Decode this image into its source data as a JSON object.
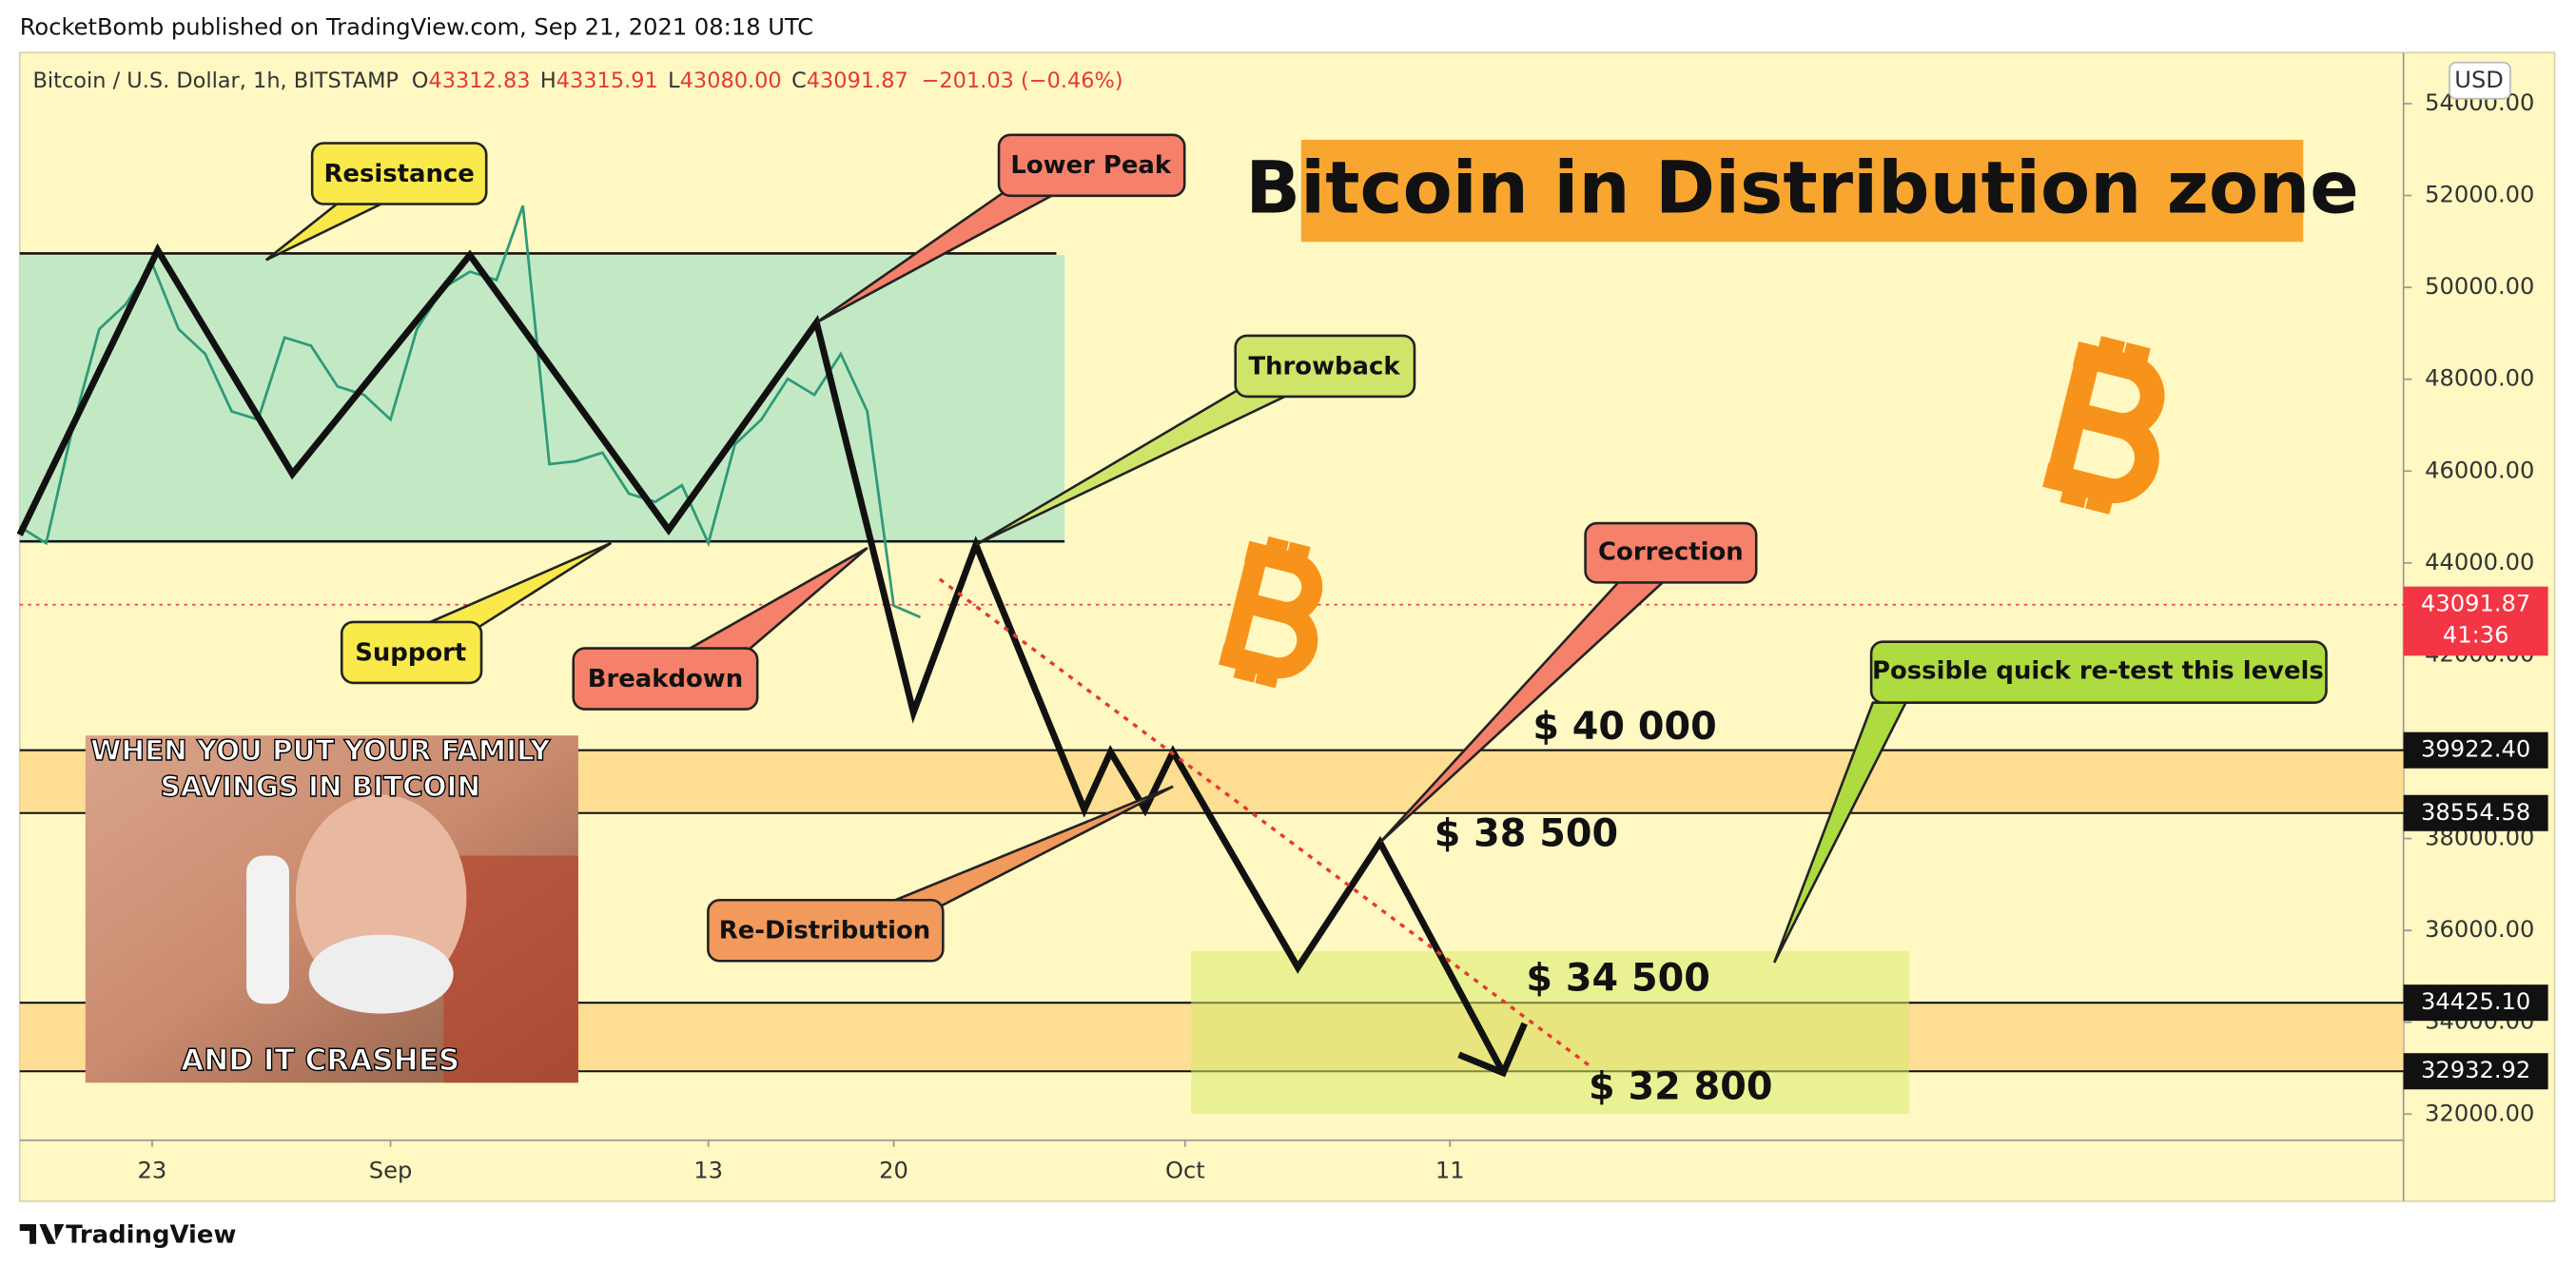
{
  "header": {
    "publisher": "RocketBomb published on TradingView.com, Sep 21, 2021 08:18 UTC"
  },
  "footer": {
    "brand": "TradingView"
  },
  "chart_data": {
    "type": "line",
    "symbol": "Bitcoin / U.S. Dollar, 1h, BITSTAMP",
    "ohlc": {
      "open_label": "O",
      "open": "43312.83",
      "high_label": "H",
      "high": "43315.91",
      "low_label": "L",
      "low": "43080.00",
      "close_label": "C",
      "close": "43091.87",
      "change": "−201.03 (−0.46%)"
    },
    "currency": "USD",
    "title": "Bitcoin in Distribution zone",
    "x": [
      "2021-08-18",
      "2021-08-19",
      "2021-08-20",
      "2021-08-21",
      "2021-08-22",
      "2021-08-23",
      "2021-08-24",
      "2021-08-25",
      "2021-08-26",
      "2021-08-27",
      "2021-08-28",
      "2021-08-29",
      "2021-08-30",
      "2021-08-31",
      "2021-09-01",
      "2021-09-02",
      "2021-09-03",
      "2021-09-04",
      "2021-09-05",
      "2021-09-06",
      "2021-09-07",
      "2021-09-08",
      "2021-09-09",
      "2021-09-10",
      "2021-09-11",
      "2021-09-12",
      "2021-09-13",
      "2021-09-14",
      "2021-09-15",
      "2021-09-16",
      "2021-09-17",
      "2021-09-18",
      "2021-09-19",
      "2021-09-20",
      "2021-09-21"
    ],
    "series": [
      {
        "color": "#2e9a78",
        "values": [
          44790,
          44430,
          46940,
          49090,
          49630,
          50520,
          49090,
          48550,
          47300,
          47120,
          48910,
          48730,
          47840,
          47660,
          47120,
          49090,
          49990,
          50340,
          50160,
          51780,
          46150,
          46220,
          46400,
          45510,
          45330,
          45690,
          44430,
          46580,
          47120,
          48010,
          47660,
          48550,
          47300,
          43070,
          42820
        ]
      }
    ],
    "xlim": [
      "2021-08-18",
      "2021-11-16"
    ],
    "xticks": [
      {
        "value": "2021-08-23",
        "label": "23"
      },
      {
        "value": "2021-09-01",
        "label": "Sep"
      },
      {
        "value": "2021-09-13",
        "label": "13"
      },
      {
        "value": "2021-09-20",
        "label": "20"
      },
      {
        "value": "2021-10-01",
        "label": "Oct"
      },
      {
        "value": "2021-10-11",
        "label": "11"
      }
    ],
    "ylim": [
      31430,
      55110
    ],
    "yticks": [
      {
        "value": 32000,
        "label": "32000.00"
      },
      {
        "value": 34000,
        "label": "34000.00"
      },
      {
        "value": 36000,
        "label": "36000.00"
      },
      {
        "value": 38000,
        "label": "38000.00"
      },
      {
        "value": 40000,
        "label": "40000.00"
      },
      {
        "value": 42000,
        "label": "42000.00"
      },
      {
        "value": 44000,
        "label": "44000.00"
      },
      {
        "value": 46000,
        "label": "46000.00"
      },
      {
        "value": 48000,
        "label": "48000.00"
      },
      {
        "value": 50000,
        "label": "50000.00"
      },
      {
        "value": 52000,
        "label": "52000.00"
      },
      {
        "value": 54000,
        "label": "54000.00"
      }
    ],
    "grid": false,
    "last_price": {
      "value": 43091.87,
      "label": "43091.87",
      "countdown": "41:36",
      "color": "#f23645"
    },
    "levels": [
      {
        "value": 39922.4,
        "label": "39922.40"
      },
      {
        "value": 38554.58,
        "label": "38554.58"
      },
      {
        "value": 34425.1,
        "label": "34425.10"
      },
      {
        "value": 32932.92,
        "label": "32932.92"
      }
    ],
    "annotations": {
      "resistance": "Resistance",
      "lower_peak": "Lower Peak",
      "throwback": "Throwback",
      "support": "Support",
      "breakdown": "Breakdown",
      "correction": "Correction",
      "retest": "Possible quick re-test this levels",
      "redistribution": "Re-Distribution"
    },
    "price_targets": [
      "$ 40 000",
      "$ 38 500",
      "$ 34 500",
      "$ 32 800"
    ],
    "meme": {
      "top": [
        "WHEN YOU PUT YOUR FAMILY",
        "SAVINGS IN BITCOIN"
      ],
      "bottom": "AND IT CRASHES"
    }
  }
}
